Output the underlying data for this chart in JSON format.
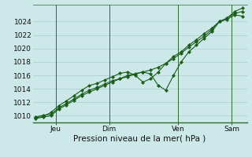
{
  "xlabel": "Pression niveau de la mer( hPa )",
  "bg_color": "#cce8e8",
  "grid_color": "#aacccc",
  "line_color": "#1a5c1a",
  "ylim": [
    1009.0,
    1026.5
  ],
  "xlim": [
    0.0,
    14.0
  ],
  "yticks": [
    1010,
    1012,
    1014,
    1016,
    1018,
    1020,
    1022,
    1024
  ],
  "xtick_positions": [
    1.5,
    5.0,
    9.5,
    13.0
  ],
  "xtick_labels": [
    "Jeu",
    "Dim",
    "Ven",
    "Sam"
  ],
  "vlines": [
    1.5,
    5.0,
    9.5,
    13.0
  ],
  "series1": {
    "x": [
      0.2,
      0.7,
      1.2,
      1.7,
      2.2,
      2.7,
      3.2,
      3.7,
      4.2,
      4.7,
      5.2,
      5.7,
      6.2,
      6.7,
      7.2,
      7.7,
      8.2,
      8.7,
      9.2,
      9.7,
      10.2,
      10.7,
      11.2,
      11.7,
      12.2,
      12.7,
      13.2,
      13.7
    ],
    "y": [
      1009.8,
      1010.1,
      1010.2,
      1011.2,
      1011.8,
      1012.5,
      1013.2,
      1013.8,
      1014.2,
      1014.7,
      1015.2,
      1015.5,
      1015.8,
      1016.2,
      1016.5,
      1016.8,
      1017.2,
      1017.8,
      1018.5,
      1019.3,
      1020.2,
      1021.0,
      1021.8,
      1022.8,
      1024.0,
      1024.5,
      1025.2,
      1025.5
    ]
  },
  "series2": {
    "x": [
      0.2,
      0.7,
      1.2,
      1.7,
      2.2,
      2.7,
      3.2,
      3.7,
      4.2,
      4.7,
      5.2,
      5.7,
      6.2,
      6.7,
      7.2,
      7.7,
      8.2,
      8.7,
      9.2,
      9.7,
      10.2,
      10.7,
      11.2,
      11.7,
      12.2,
      12.7,
      13.2,
      13.7
    ],
    "y": [
      1009.7,
      1009.9,
      1010.5,
      1011.5,
      1012.2,
      1013.0,
      1013.8,
      1014.5,
      1014.8,
      1015.3,
      1015.8,
      1016.3,
      1016.5,
      1016.0,
      1015.0,
      1015.5,
      1016.5,
      1017.8,
      1018.8,
      1019.5,
      1020.5,
      1021.3,
      1022.2,
      1023.0,
      1024.0,
      1024.5,
      1025.5,
      1026.0
    ]
  },
  "series3": {
    "x": [
      0.2,
      0.7,
      1.2,
      1.7,
      2.2,
      2.7,
      3.2,
      3.7,
      4.2,
      4.7,
      5.2,
      5.7,
      6.2,
      7.2,
      7.7,
      8.2,
      8.7,
      9.2,
      9.7,
      10.2,
      10.7,
      11.2,
      11.7,
      12.2,
      12.7,
      13.2,
      13.7
    ],
    "y": [
      1009.6,
      1009.8,
      1010.0,
      1011.0,
      1011.6,
      1012.3,
      1013.0,
      1013.5,
      1014.0,
      1014.5,
      1015.0,
      1015.5,
      1016.0,
      1016.5,
      1016.2,
      1014.5,
      1013.8,
      1016.0,
      1018.0,
      1019.5,
      1020.5,
      1021.5,
      1022.5,
      1024.0,
      1024.3,
      1025.0,
      1024.8
    ]
  }
}
